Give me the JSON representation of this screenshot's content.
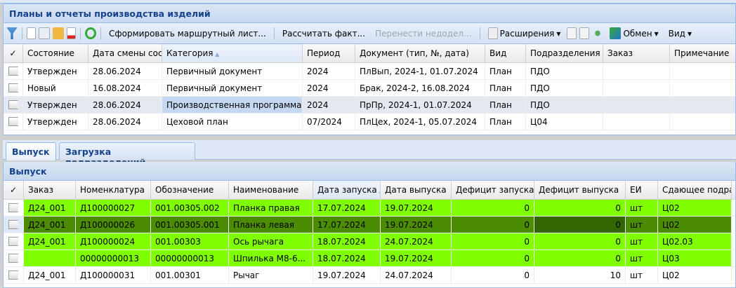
{
  "plans": {
    "title": "Планы и отчеты производства изделий",
    "toolbar": {
      "icons": [
        "filter-icon",
        "new-document-icon",
        "copy-document-icon",
        "open-folder-icon",
        "delete-document-icon",
        "refresh-icon"
      ],
      "form_route": "Сформировать маршрутный лист...",
      "calc_fact": "Рассчитать факт...",
      "transfer": "Перенести недодел...",
      "extensions": "Расширения",
      "exchange": "Обмен",
      "view": "Вид"
    },
    "columns": [
      "✓",
      "Состояние",
      "Дата смены сост",
      "Категория",
      "Период",
      "Документ (тип, №, дата)",
      "Вид",
      "Подразделения",
      "Заказ",
      "Примечание"
    ],
    "rows": [
      [
        "",
        "Утвержден",
        "28.06.2024",
        "Первичный документ",
        "2024",
        "ПлВып, 2024-1, 01.07.2024",
        "План",
        "ПДО",
        "",
        ""
      ],
      [
        "",
        "Новый",
        "16.08.2024",
        "Первичный документ",
        "2024",
        "Брак, 2024-2, 16.08.2024",
        "План",
        "ПДО",
        "",
        ""
      ],
      [
        "",
        "Утвержден",
        "28.06.2024",
        "Производственная программа",
        "2024",
        "ПрПр, 2024-1, 01.07.2024",
        "План",
        "ПДО",
        "",
        ""
      ],
      [
        "",
        "Утвержден",
        "28.06.2024",
        "Цеховой план",
        "07/2024",
        "ПлЦех, 2024-1, 05.07.2024",
        "План",
        "Ц04",
        "",
        ""
      ]
    ]
  },
  "tabs": [
    "Выпуск",
    "Загрузка подразделений"
  ],
  "output": {
    "title": "Выпуск",
    "columns": [
      "✓",
      "Заказ",
      "Номенклатура",
      "Обозначение",
      "Наименование",
      "Дата запуска",
      "Дата выпуска",
      "Дефицит запуска",
      "Дефицит выпуска",
      "ЕИ",
      "Сдающее подраз"
    ],
    "rows": [
      [
        "",
        "Д24_001",
        "Д100000027",
        "001.00305.002",
        "Планка правая",
        "17.07.2024",
        "19.07.2024",
        "0",
        "0",
        "шт",
        "Ц02"
      ],
      [
        "",
        "Д24_001",
        "Д100000026",
        "001.00305.001",
        "Планка левая",
        "17.07.2024",
        "19.07.2024",
        "0",
        "0",
        "шт",
        "Ц02"
      ],
      [
        "",
        "Д24_001",
        "Д100000024",
        "001.00303",
        "Ось рычага",
        "18.07.2024",
        "24.07.2024",
        "0",
        "0",
        "шт",
        "Ц02.03"
      ],
      [
        "",
        "",
        "00000000013",
        "00000000013",
        "Шпилька М8-6...",
        "18.07.2024",
        "19.07.2024",
        "0",
        "0",
        "шт",
        "Ц03"
      ],
      [
        "",
        "Д24_001",
        "Д100000031",
        "001.00301",
        "Рычаг",
        "19.07.2024",
        "24.07.2024",
        "0",
        "10",
        "шт",
        "Ц02"
      ]
    ]
  },
  "colors": {
    "green": "#80ff00",
    "selected_green": "#4c8c00",
    "title": "#15428b"
  }
}
